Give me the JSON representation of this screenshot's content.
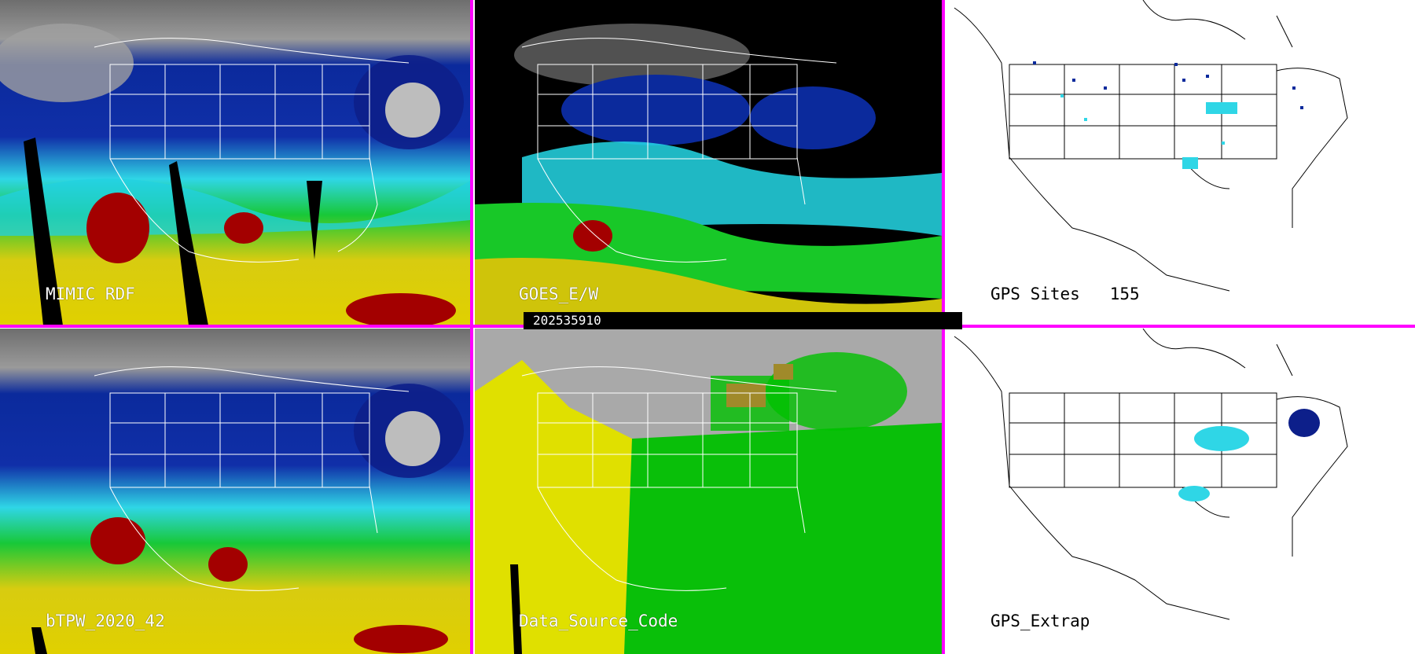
{
  "panels": [
    {
      "label": "MIMIC RDF"
    },
    {
      "label": "GOES_E/W"
    },
    {
      "label": "GPS Sites   155"
    },
    {
      "label": "bTPW_2020_42"
    },
    {
      "label": "Data_Source_Code"
    },
    {
      "label": "GPS_Extrap"
    }
  ],
  "timestamp": "202535910",
  "colors": {
    "separator": "#ff00ff",
    "gray_low": "#7a7a7a",
    "navy": "#0a1f8c",
    "blue": "#1c4fd8",
    "cyan": "#2fe6e6",
    "green": "#10c820",
    "yellow": "#d8d000",
    "red": "#b00000",
    "source_gray": "#a9a9a9",
    "source_green": "#00c000",
    "source_yellow": "#e0e000",
    "source_olive": "#a08a2a"
  }
}
